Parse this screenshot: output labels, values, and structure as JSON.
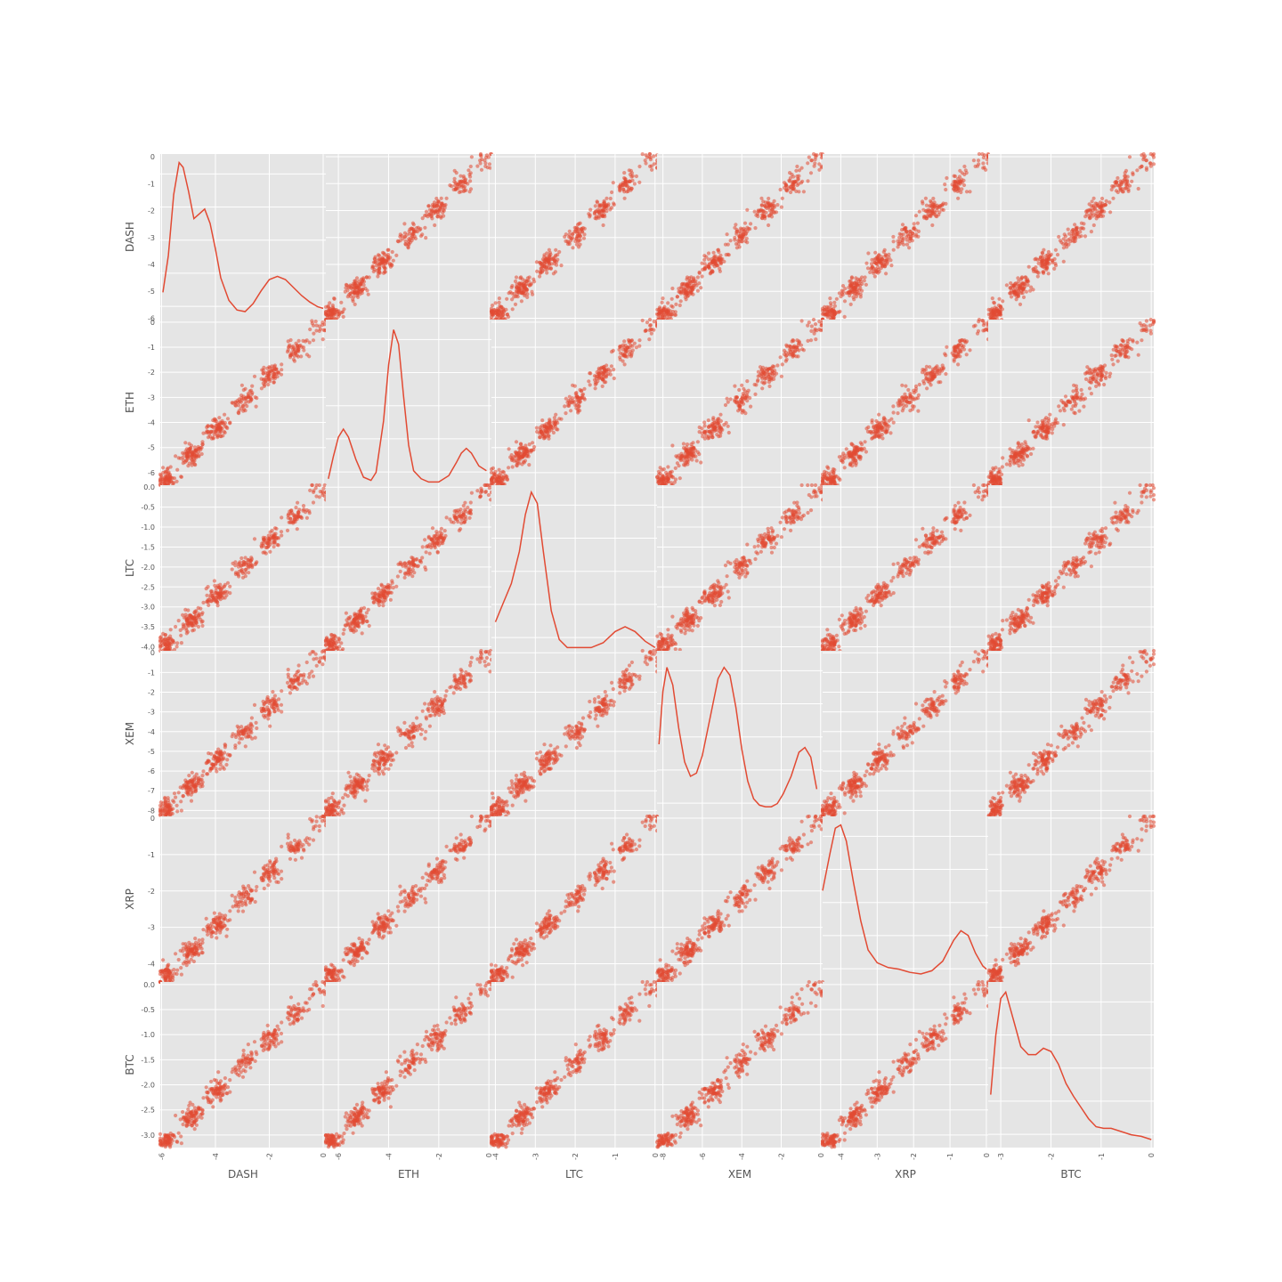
{
  "chart_data": {
    "type": "scatter_matrix",
    "style": "ggplot",
    "grid": true,
    "diagonal": "kde",
    "colors": {
      "marker": "#E24A33",
      "panel_bg": "#E5E5E5",
      "grid": "#FFFFFF",
      "text": "#555555"
    },
    "variables": [
      "DASH",
      "ETH",
      "LTC",
      "XEM",
      "XRP",
      "BTC"
    ],
    "ranges": {
      "DASH": [
        -6.05,
        0.1
      ],
      "ETH": [
        -6.5,
        0.1
      ],
      "LTC": [
        -4.1,
        0.05
      ],
      "XEM": [
        -8.3,
        0.1
      ],
      "XRP": [
        -4.5,
        0.05
      ],
      "BTC": [
        -3.25,
        0.05
      ]
    },
    "ticks": {
      "DASH": [
        -6,
        -5,
        -4,
        -3,
        -2,
        -1,
        0
      ],
      "ETH": [
        -6,
        -5,
        -4,
        -3,
        -2,
        -1,
        0
      ],
      "LTC": [
        -4.0,
        -3.5,
        -3.0,
        -2.5,
        -2.0,
        -1.5,
        -1.0,
        -0.5,
        0.0
      ],
      "XEM": [
        -8,
        -7,
        -6,
        -5,
        -4,
        -3,
        -2,
        -1,
        0
      ],
      "XRP": [
        -4,
        -3,
        -2,
        -1,
        0
      ],
      "BTC": [
        -3.0,
        -2.5,
        -2.0,
        -1.5,
        -1.0,
        -0.5,
        0.0
      ]
    },
    "xticks": {
      "DASH": [
        -6,
        -4,
        -2,
        0
      ],
      "ETH": [
        -6,
        -4,
        -2,
        0
      ],
      "LTC": [
        -4,
        -3,
        -2,
        -1,
        0
      ],
      "XEM": [
        -8,
        -6,
        -4,
        -2,
        0
      ],
      "XRP": [
        -4,
        -3,
        -2,
        -1,
        0
      ],
      "BTC": [
        -3,
        -2,
        -1,
        0
      ]
    },
    "kde": {
      "DASH": [
        [
          -5.95,
          0.17
        ],
        [
          -5.75,
          0.4
        ],
        [
          -5.55,
          0.78
        ],
        [
          -5.35,
          0.98
        ],
        [
          -5.2,
          0.95
        ],
        [
          -5.0,
          0.8
        ],
        [
          -4.8,
          0.63
        ],
        [
          -4.6,
          0.66
        ],
        [
          -4.4,
          0.69
        ],
        [
          -4.2,
          0.6
        ],
        [
          -4.0,
          0.44
        ],
        [
          -3.8,
          0.26
        ],
        [
          -3.5,
          0.12
        ],
        [
          -3.2,
          0.06
        ],
        [
          -2.9,
          0.05
        ],
        [
          -2.6,
          0.1
        ],
        [
          -2.3,
          0.18
        ],
        [
          -2.0,
          0.25
        ],
        [
          -1.7,
          0.27
        ],
        [
          -1.4,
          0.25
        ],
        [
          -1.1,
          0.2
        ],
        [
          -0.8,
          0.15
        ],
        [
          -0.5,
          0.11
        ],
        [
          -0.2,
          0.08
        ],
        [
          0.0,
          0.07
        ]
      ],
      "ETH": [
        [
          -6.4,
          0.04
        ],
        [
          -6.2,
          0.18
        ],
        [
          -6.0,
          0.3
        ],
        [
          -5.8,
          0.35
        ],
        [
          -5.6,
          0.3
        ],
        [
          -5.3,
          0.16
        ],
        [
          -5.0,
          0.05
        ],
        [
          -4.7,
          0.03
        ],
        [
          -4.5,
          0.08
        ],
        [
          -4.2,
          0.4
        ],
        [
          -4.0,
          0.75
        ],
        [
          -3.8,
          0.97
        ],
        [
          -3.6,
          0.88
        ],
        [
          -3.4,
          0.55
        ],
        [
          -3.2,
          0.25
        ],
        [
          -3.0,
          0.09
        ],
        [
          -2.7,
          0.04
        ],
        [
          -2.4,
          0.02
        ],
        [
          -2.0,
          0.02
        ],
        [
          -1.6,
          0.06
        ],
        [
          -1.3,
          0.14
        ],
        [
          -1.1,
          0.2
        ],
        [
          -0.9,
          0.23
        ],
        [
          -0.7,
          0.2
        ],
        [
          -0.4,
          0.12
        ],
        [
          -0.1,
          0.09
        ]
      ],
      "LTC": [
        [
          -4.0,
          0.18
        ],
        [
          -3.8,
          0.3
        ],
        [
          -3.6,
          0.42
        ],
        [
          -3.4,
          0.62
        ],
        [
          -3.25,
          0.85
        ],
        [
          -3.1,
          0.99
        ],
        [
          -2.95,
          0.92
        ],
        [
          -2.8,
          0.62
        ],
        [
          -2.6,
          0.25
        ],
        [
          -2.4,
          0.07
        ],
        [
          -2.2,
          0.02
        ],
        [
          -1.9,
          0.02
        ],
        [
          -1.6,
          0.02
        ],
        [
          -1.3,
          0.05
        ],
        [
          -1.0,
          0.12
        ],
        [
          -0.75,
          0.15
        ],
        [
          -0.5,
          0.12
        ],
        [
          -0.25,
          0.06
        ],
        [
          0.0,
          0.02
        ]
      ],
      "XEM": [
        [
          -8.2,
          0.45
        ],
        [
          -8.0,
          0.78
        ],
        [
          -7.8,
          0.93
        ],
        [
          -7.5,
          0.82
        ],
        [
          -7.2,
          0.55
        ],
        [
          -6.9,
          0.34
        ],
        [
          -6.6,
          0.25
        ],
        [
          -6.3,
          0.27
        ],
        [
          -6.0,
          0.38
        ],
        [
          -5.6,
          0.62
        ],
        [
          -5.2,
          0.86
        ],
        [
          -4.9,
          0.93
        ],
        [
          -4.6,
          0.88
        ],
        [
          -4.3,
          0.68
        ],
        [
          -4.0,
          0.42
        ],
        [
          -3.7,
          0.22
        ],
        [
          -3.4,
          0.11
        ],
        [
          -3.1,
          0.07
        ],
        [
          -2.8,
          0.06
        ],
        [
          -2.5,
          0.06
        ],
        [
          -2.2,
          0.08
        ],
        [
          -1.9,
          0.14
        ],
        [
          -1.5,
          0.25
        ],
        [
          -1.1,
          0.4
        ],
        [
          -0.8,
          0.43
        ],
        [
          -0.5,
          0.37
        ],
        [
          -0.2,
          0.17
        ]
      ],
      "XRP": [
        [
          -4.5,
          0.57
        ],
        [
          -4.3,
          0.8
        ],
        [
          -4.15,
          0.96
        ],
        [
          -4.0,
          0.98
        ],
        [
          -3.85,
          0.88
        ],
        [
          -3.65,
          0.62
        ],
        [
          -3.45,
          0.38
        ],
        [
          -3.25,
          0.2
        ],
        [
          -3.0,
          0.12
        ],
        [
          -2.7,
          0.09
        ],
        [
          -2.4,
          0.08
        ],
        [
          -2.1,
          0.06
        ],
        [
          -1.8,
          0.05
        ],
        [
          -1.5,
          0.07
        ],
        [
          -1.2,
          0.13
        ],
        [
          -0.9,
          0.26
        ],
        [
          -0.7,
          0.32
        ],
        [
          -0.5,
          0.29
        ],
        [
          -0.3,
          0.18
        ],
        [
          -0.1,
          0.1
        ],
        [
          0.0,
          0.08
        ]
      ],
      "BTC": [
        [
          -3.2,
          0.33
        ],
        [
          -3.1,
          0.7
        ],
        [
          -3.0,
          0.93
        ],
        [
          -2.9,
          0.97
        ],
        [
          -2.75,
          0.8
        ],
        [
          -2.6,
          0.63
        ],
        [
          -2.45,
          0.58
        ],
        [
          -2.3,
          0.58
        ],
        [
          -2.15,
          0.62
        ],
        [
          -2.0,
          0.6
        ],
        [
          -1.85,
          0.52
        ],
        [
          -1.7,
          0.4
        ],
        [
          -1.55,
          0.32
        ],
        [
          -1.4,
          0.25
        ],
        [
          -1.25,
          0.18
        ],
        [
          -1.1,
          0.13
        ],
        [
          -0.95,
          0.12
        ],
        [
          -0.8,
          0.12
        ],
        [
          -0.6,
          0.1
        ],
        [
          -0.4,
          0.08
        ],
        [
          -0.2,
          0.07
        ],
        [
          0.0,
          0.05
        ]
      ]
    }
  }
}
